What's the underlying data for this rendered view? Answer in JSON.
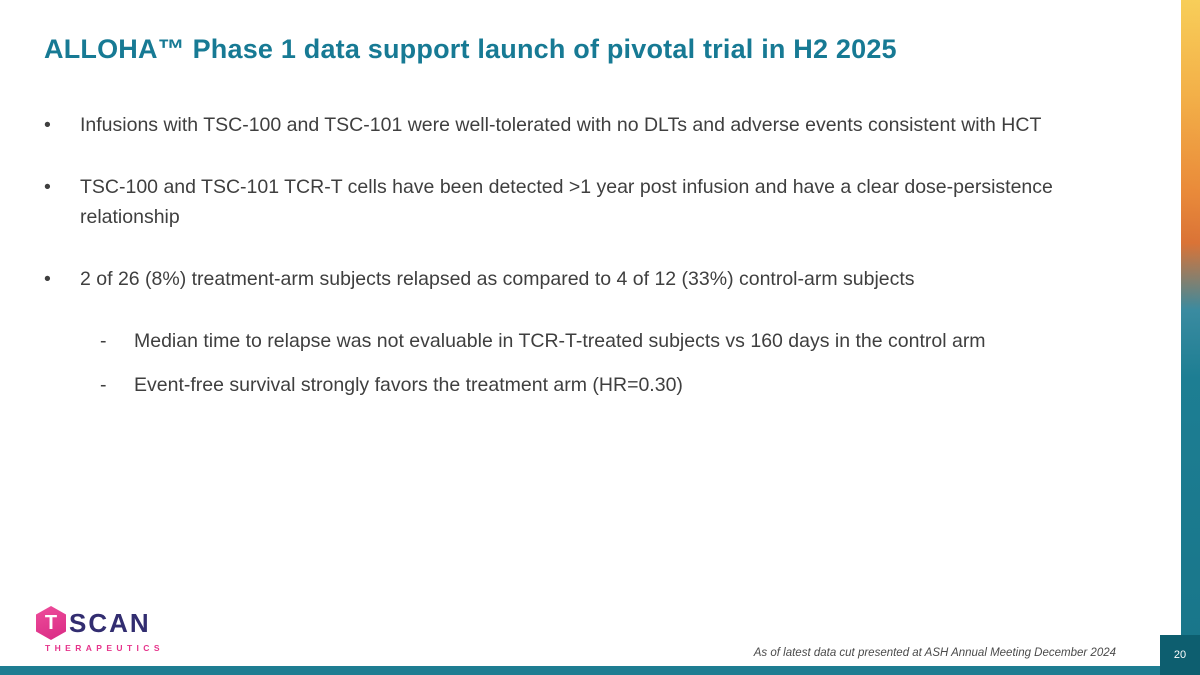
{
  "slide": {
    "title": "ALLOHA™ Phase 1 data support launch of pivotal trial in H2 2025",
    "bullet_marker": "•",
    "sub_bullet_marker": "-",
    "bullets": [
      "Infusions with TSC-100 and TSC-101 were well-tolerated with no DLTs and adverse events consistent with HCT",
      "TSC-100 and TSC-101 TCR-T cells have been detected >1 year post infusion and have a clear dose-persistence relationship",
      "2 of 26 (8%) treatment-arm subjects relapsed as compared to 4 of 12 (33%) control-arm subjects"
    ],
    "sub_bullets": [
      "Median time to relapse was not evaluable in TCR-T-treated subjects vs 160 days in the control arm",
      "Event-free survival strongly favors the treatment arm (HR=0.30)"
    ]
  },
  "footer": {
    "footnote": "As of latest data cut presented at ASH Annual Meeting December 2024",
    "page_number": "20",
    "logo": {
      "icon_letter": "T",
      "name": "SCAN",
      "subtitle": "THERAPEUTICS"
    }
  },
  "colors": {
    "title_teal": "#177a94",
    "body_text": "#3f3f3f",
    "bottom_bar_teal": "#1e7d92",
    "page_badge_teal": "#0d5e6f",
    "stripe_gold": "#f6c335",
    "stripe_orange": "#e8832c",
    "stripe_teal": "#1d7e93",
    "logo_navy": "#322d70",
    "logo_pink": "#e6338b"
  }
}
